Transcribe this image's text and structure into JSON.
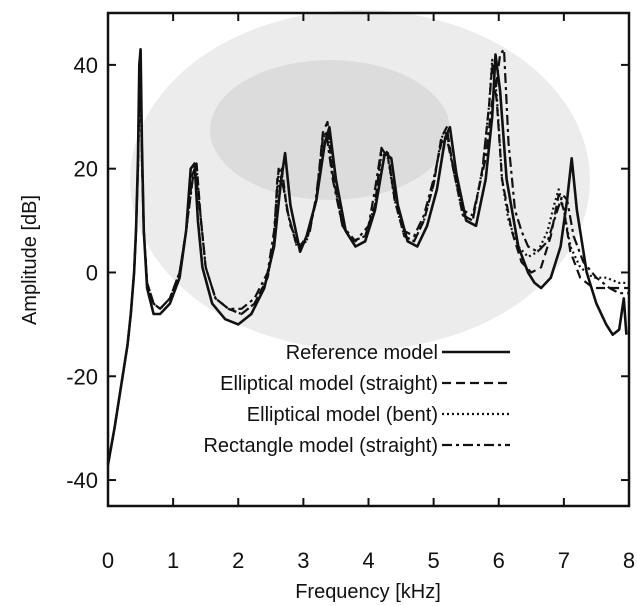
{
  "chart_data": {
    "type": "line",
    "title": "",
    "xlabel": "Frequency [kHz]",
    "ylabel": "Amplitude [dB]",
    "xlim": [
      0,
      8
    ],
    "ylim": [
      -45,
      50
    ],
    "xticks": [
      "0",
      "1",
      "2",
      "3",
      "4",
      "5",
      "6",
      "7",
      "8"
    ],
    "yticks": [
      "40",
      "20",
      "0",
      "-20",
      "-40"
    ],
    "grid": false,
    "legend_position": "bottom-right",
    "series": [
      {
        "name": "Reference model",
        "style": "solid",
        "points": [
          [
            0,
            -37
          ],
          [
            0.1,
            -30
          ],
          [
            0.2,
            -22
          ],
          [
            0.3,
            -14
          ],
          [
            0.35,
            -8
          ],
          [
            0.4,
            0
          ],
          [
            0.43,
            8
          ],
          [
            0.46,
            22
          ],
          [
            0.48,
            40
          ],
          [
            0.5,
            43
          ],
          [
            0.52,
            25
          ],
          [
            0.55,
            8
          ],
          [
            0.6,
            -3
          ],
          [
            0.7,
            -8
          ],
          [
            0.8,
            -8
          ],
          [
            0.95,
            -6
          ],
          [
            1.1,
            -1
          ],
          [
            1.2,
            8
          ],
          [
            1.27,
            20
          ],
          [
            1.33,
            21
          ],
          [
            1.38,
            10
          ],
          [
            1.45,
            1
          ],
          [
            1.6,
            -6
          ],
          [
            1.8,
            -9
          ],
          [
            2.0,
            -10
          ],
          [
            2.2,
            -8
          ],
          [
            2.4,
            -3
          ],
          [
            2.55,
            5
          ],
          [
            2.65,
            17
          ],
          [
            2.72,
            23
          ],
          [
            2.8,
            13
          ],
          [
            2.95,
            4
          ],
          [
            3.05,
            7
          ],
          [
            3.2,
            14
          ],
          [
            3.33,
            25
          ],
          [
            3.4,
            28
          ],
          [
            3.5,
            18
          ],
          [
            3.65,
            8
          ],
          [
            3.8,
            5
          ],
          [
            3.95,
            6
          ],
          [
            4.1,
            12
          ],
          [
            4.25,
            23
          ],
          [
            4.35,
            22
          ],
          [
            4.45,
            13
          ],
          [
            4.6,
            6
          ],
          [
            4.75,
            5
          ],
          [
            4.9,
            9
          ],
          [
            5.05,
            16
          ],
          [
            5.18,
            26
          ],
          [
            5.25,
            28
          ],
          [
            5.35,
            19
          ],
          [
            5.5,
            10
          ],
          [
            5.65,
            9
          ],
          [
            5.8,
            18
          ],
          [
            5.9,
            30
          ],
          [
            5.95,
            42
          ],
          [
            6.02,
            35
          ],
          [
            6.12,
            18
          ],
          [
            6.3,
            5
          ],
          [
            6.45,
            0
          ],
          [
            6.55,
            -2
          ],
          [
            6.65,
            -3
          ],
          [
            6.8,
            -1
          ],
          [
            6.95,
            5
          ],
          [
            7.05,
            14
          ],
          [
            7.12,
            22
          ],
          [
            7.2,
            12
          ],
          [
            7.35,
            0
          ],
          [
            7.5,
            -6
          ],
          [
            7.65,
            -10
          ],
          [
            7.75,
            -12
          ],
          [
            7.85,
            -11
          ],
          [
            7.92,
            -5
          ],
          [
            7.96,
            -12
          ]
        ]
      },
      {
        "name": "Elliptical model (straight)",
        "style": "dashed",
        "points": [
          [
            0,
            -37
          ],
          [
            0.1,
            -30
          ],
          [
            0.2,
            -22
          ],
          [
            0.3,
            -14
          ],
          [
            0.35,
            -8
          ],
          [
            0.4,
            0
          ],
          [
            0.43,
            8
          ],
          [
            0.46,
            20
          ],
          [
            0.48,
            34
          ],
          [
            0.5,
            37
          ],
          [
            0.52,
            22
          ],
          [
            0.55,
            8
          ],
          [
            0.6,
            -2
          ],
          [
            0.7,
            -6
          ],
          [
            0.8,
            -7
          ],
          [
            0.95,
            -5
          ],
          [
            1.1,
            0
          ],
          [
            1.2,
            8
          ],
          [
            1.3,
            19
          ],
          [
            1.36,
            21
          ],
          [
            1.42,
            11
          ],
          [
            1.5,
            1
          ],
          [
            1.65,
            -5
          ],
          [
            1.85,
            -7
          ],
          [
            2.05,
            -8
          ],
          [
            2.25,
            -6
          ],
          [
            2.45,
            -1
          ],
          [
            2.55,
            6
          ],
          [
            2.6,
            18
          ],
          [
            2.67,
            20
          ],
          [
            2.75,
            12
          ],
          [
            2.9,
            5
          ],
          [
            3.05,
            6
          ],
          [
            3.2,
            14
          ],
          [
            3.3,
            27
          ],
          [
            3.37,
            29
          ],
          [
            3.45,
            19
          ],
          [
            3.6,
            9
          ],
          [
            3.75,
            6
          ],
          [
            3.95,
            7
          ],
          [
            4.1,
            13
          ],
          [
            4.2,
            24
          ],
          [
            4.3,
            23
          ],
          [
            4.4,
            14
          ],
          [
            4.55,
            7
          ],
          [
            4.7,
            6
          ],
          [
            4.85,
            10
          ],
          [
            5.0,
            17
          ],
          [
            5.12,
            26
          ],
          [
            5.2,
            28
          ],
          [
            5.3,
            20
          ],
          [
            5.45,
            11
          ],
          [
            5.6,
            10
          ],
          [
            5.75,
            20
          ],
          [
            5.85,
            32
          ],
          [
            5.9,
            40
          ],
          [
            5.97,
            33
          ],
          [
            6.05,
            18
          ],
          [
            6.2,
            8
          ],
          [
            6.35,
            2
          ],
          [
            6.5,
            0
          ],
          [
            6.65,
            1
          ],
          [
            6.8,
            7
          ],
          [
            6.92,
            15
          ],
          [
            7.0,
            12
          ],
          [
            7.1,
            4
          ],
          [
            7.25,
            -1
          ],
          [
            7.45,
            -3
          ],
          [
            7.65,
            -3
          ],
          [
            7.85,
            -3
          ],
          [
            8.0,
            -3
          ]
        ]
      },
      {
        "name": "Elliptical model (bent)",
        "style": "dotted",
        "points": [
          [
            0,
            -37
          ],
          [
            0.1,
            -30
          ],
          [
            0.2,
            -22
          ],
          [
            0.3,
            -14
          ],
          [
            0.35,
            -8
          ],
          [
            0.4,
            0
          ],
          [
            0.43,
            8
          ],
          [
            0.46,
            20
          ],
          [
            0.48,
            33
          ],
          [
            0.5,
            36
          ],
          [
            0.52,
            22
          ],
          [
            0.55,
            8
          ],
          [
            0.6,
            -2
          ],
          [
            0.7,
            -6
          ],
          [
            0.8,
            -7
          ],
          [
            0.95,
            -5
          ],
          [
            1.1,
            0
          ],
          [
            1.2,
            8
          ],
          [
            1.3,
            18
          ],
          [
            1.36,
            20
          ],
          [
            1.42,
            11
          ],
          [
            1.5,
            1
          ],
          [
            1.65,
            -5
          ],
          [
            1.85,
            -7
          ],
          [
            2.05,
            -8
          ],
          [
            2.25,
            -6
          ],
          [
            2.45,
            -1
          ],
          [
            2.55,
            6
          ],
          [
            2.6,
            16
          ],
          [
            2.67,
            19
          ],
          [
            2.75,
            12
          ],
          [
            2.9,
            5
          ],
          [
            3.05,
            6
          ],
          [
            3.2,
            14
          ],
          [
            3.3,
            26
          ],
          [
            3.37,
            27
          ],
          [
            3.45,
            19
          ],
          [
            3.6,
            9
          ],
          [
            3.75,
            6
          ],
          [
            3.95,
            7
          ],
          [
            4.1,
            13
          ],
          [
            4.2,
            23
          ],
          [
            4.3,
            22
          ],
          [
            4.4,
            14
          ],
          [
            4.55,
            7
          ],
          [
            4.7,
            6
          ],
          [
            4.85,
            10
          ],
          [
            5.0,
            17
          ],
          [
            5.12,
            26
          ],
          [
            5.2,
            27
          ],
          [
            5.3,
            20
          ],
          [
            5.45,
            11
          ],
          [
            5.6,
            10
          ],
          [
            5.75,
            20
          ],
          [
            5.85,
            32
          ],
          [
            5.9,
            41
          ],
          [
            5.97,
            34
          ],
          [
            6.05,
            18
          ],
          [
            6.15,
            10
          ],
          [
            6.3,
            5
          ],
          [
            6.45,
            3
          ],
          [
            6.6,
            4
          ],
          [
            6.75,
            8
          ],
          [
            6.85,
            13
          ],
          [
            6.92,
            16
          ],
          [
            7.0,
            12
          ],
          [
            7.1,
            5
          ],
          [
            7.25,
            1
          ],
          [
            7.45,
            -1
          ],
          [
            7.65,
            -1
          ],
          [
            7.85,
            -2
          ],
          [
            8.0,
            -2
          ]
        ]
      },
      {
        "name": "Rectangle model (straight)",
        "style": "dash-dot",
        "points": [
          [
            0,
            -37
          ],
          [
            0.1,
            -30
          ],
          [
            0.2,
            -22
          ],
          [
            0.3,
            -14
          ],
          [
            0.35,
            -8
          ],
          [
            0.4,
            0
          ],
          [
            0.43,
            8
          ],
          [
            0.46,
            22
          ],
          [
            0.48,
            38
          ],
          [
            0.5,
            42
          ],
          [
            0.52,
            24
          ],
          [
            0.55,
            8
          ],
          [
            0.6,
            -2
          ],
          [
            0.7,
            -6
          ],
          [
            0.8,
            -7
          ],
          [
            0.95,
            -5
          ],
          [
            1.1,
            0
          ],
          [
            1.2,
            8
          ],
          [
            1.3,
            18
          ],
          [
            1.35,
            19
          ],
          [
            1.42,
            11
          ],
          [
            1.5,
            1
          ],
          [
            1.65,
            -5
          ],
          [
            1.85,
            -7
          ],
          [
            2.05,
            -7
          ],
          [
            2.25,
            -5
          ],
          [
            2.45,
            0
          ],
          [
            2.55,
            8
          ],
          [
            2.62,
            20
          ],
          [
            2.7,
            16
          ],
          [
            2.8,
            9
          ],
          [
            2.95,
            5
          ],
          [
            3.1,
            8
          ],
          [
            3.2,
            15
          ],
          [
            3.3,
            26
          ],
          [
            3.35,
            27
          ],
          [
            3.45,
            18
          ],
          [
            3.6,
            9
          ],
          [
            3.8,
            6
          ],
          [
            4.0,
            9
          ],
          [
            4.1,
            16
          ],
          [
            4.2,
            24
          ],
          [
            4.3,
            22
          ],
          [
            4.4,
            15
          ],
          [
            4.55,
            8
          ],
          [
            4.7,
            7
          ],
          [
            4.85,
            11
          ],
          [
            5.0,
            18
          ],
          [
            5.12,
            25
          ],
          [
            5.2,
            26
          ],
          [
            5.3,
            20
          ],
          [
            5.45,
            12
          ],
          [
            5.6,
            11
          ],
          [
            5.8,
            22
          ],
          [
            5.9,
            33
          ],
          [
            5.95,
            35
          ],
          [
            6.02,
            42
          ],
          [
            6.08,
            43
          ],
          [
            6.15,
            25
          ],
          [
            6.25,
            12
          ],
          [
            6.35,
            8
          ],
          [
            6.45,
            5
          ],
          [
            6.6,
            4
          ],
          [
            6.75,
            6
          ],
          [
            6.9,
            12
          ],
          [
            6.98,
            15
          ],
          [
            7.05,
            14
          ],
          [
            7.15,
            7
          ],
          [
            7.3,
            2
          ],
          [
            7.5,
            -1
          ],
          [
            7.7,
            -3
          ],
          [
            7.85,
            -4
          ],
          [
            8.0,
            -4
          ]
        ]
      }
    ]
  }
}
